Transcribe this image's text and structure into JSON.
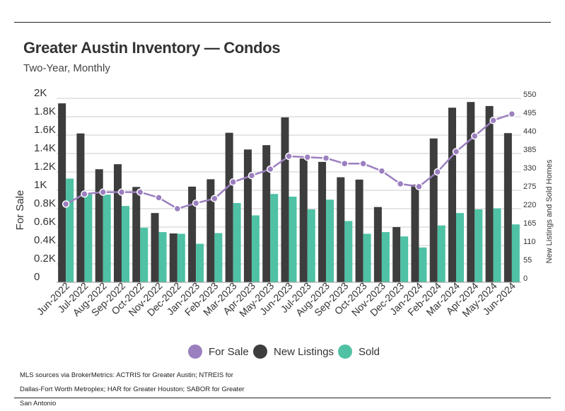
{
  "title": "Greater Austin Inventory — Condos",
  "subtitle": "Two-Year, Monthly",
  "source_note": "MLS sources via BrokerMetrics: ACTRIS for Greater Austin; NTREIS for Dallas-Fort Worth Metroplex; HAR for Greater Houston; SABOR for Greater San Antonio",
  "colors": {
    "for_sale": "#9b7fbf",
    "new_listings": "#3d3d3d",
    "sold": "#4fc1a4",
    "grid": "#cccccc",
    "axis_text": "#333333"
  },
  "chart_data": {
    "type": "bar",
    "title": "Greater Austin Inventory — Condos",
    "subtitle": "Two-Year, Monthly",
    "categories": [
      "Jun-2022",
      "Jul-2022",
      "Aug-2022",
      "Sep-2022",
      "Oct-2022",
      "Nov-2022",
      "Dec-2022",
      "Jan-2023",
      "Feb-2023",
      "Mar-2023",
      "Apr-2023",
      "May-2023",
      "Jun-2023",
      "Jul-2023",
      "Aug-2023",
      "Sep-2023",
      "Oct-2023",
      "Nov-2023",
      "Dec-2023",
      "Jan-2024",
      "Feb-2024",
      "Mar-2024",
      "Apr-2024",
      "May-2024",
      "Jun-2024"
    ],
    "series": [
      {
        "name": "For Sale",
        "type": "line",
        "axis": "left",
        "values": [
          850,
          960,
          980,
          980,
          980,
          920,
          800,
          860,
          910,
          1090,
          1160,
          1230,
          1370,
          1360,
          1350,
          1290,
          1290,
          1210,
          1070,
          1040,
          1200,
          1420,
          1590,
          1760,
          1830
        ]
      },
      {
        "name": "New Listings",
        "type": "bar",
        "axis": "right",
        "values": [
          535,
          445,
          338,
          353,
          285,
          207,
          146,
          286,
          308,
          447,
          397,
          410,
          493,
          370,
          360,
          314,
          307,
          225,
          165,
          292,
          430,
          522,
          539,
          527,
          446
        ]
      },
      {
        "name": "Sold",
        "type": "bar",
        "axis": "right",
        "values": [
          310,
          263,
          262,
          228,
          163,
          150,
          145,
          115,
          147,
          237,
          200,
          264,
          256,
          218,
          247,
          183,
          145,
          150,
          137,
          104,
          170,
          207,
          218,
          221,
          173
        ]
      }
    ],
    "left_axis": {
      "label": "For Sale",
      "min": 0,
      "max": 2000,
      "ticks": [
        "0",
        "0.2K",
        "0.4K",
        "0.6K",
        "0.8K",
        "1K",
        "1.2K",
        "1.4K",
        "1.6K",
        "1.8K",
        "2K"
      ]
    },
    "right_axis": {
      "label": "New Listings and Sold Homes",
      "min": 0,
      "max": 550,
      "ticks": [
        "0",
        "55",
        "110",
        "165",
        "220",
        "275",
        "330",
        "385",
        "440",
        "495",
        "550"
      ]
    },
    "grid": true,
    "legend_position": "bottom-center"
  }
}
